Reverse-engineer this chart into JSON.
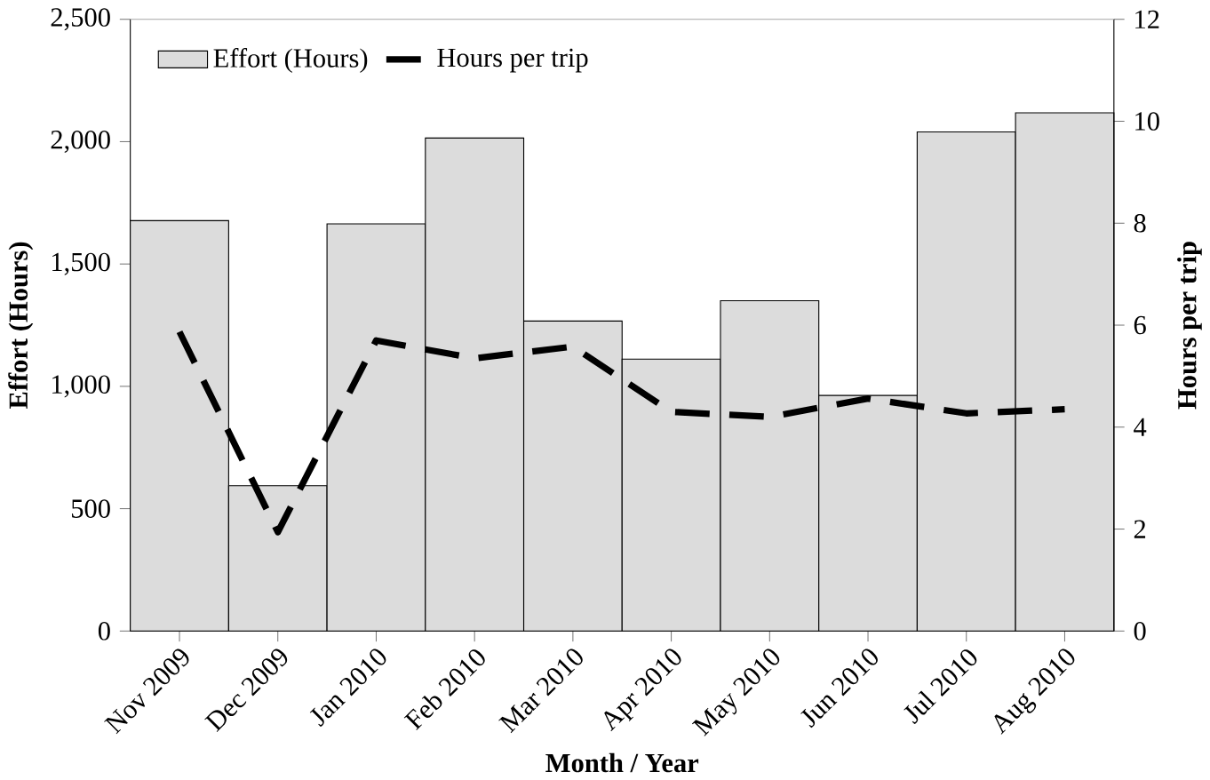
{
  "chart_data": {
    "type": "bar",
    "xlabel": "Month / Year",
    "ylabel": "Effort (Hours)",
    "y2label": "Hours per trip",
    "categories": [
      "Nov 2009",
      "Dec 2009",
      "Jan 2010",
      "Feb 2010",
      "Mar 2010",
      "Apr 2010",
      "May 2010",
      "Jun 2010",
      "Jul 2010",
      "Aug 2010"
    ],
    "series": [
      {
        "name": "Effort (Hours)",
        "color": "#dcdcdc",
        "values": [
          1677,
          594,
          1664,
          2015,
          1267,
          1111,
          1350,
          963,
          2040,
          2118
        ]
      },
      {
        "name": "Hours per trip",
        "type": "line",
        "axis": "y2",
        "color": "#000000",
        "line_style": "dashed",
        "marker": "none",
        "values": [
          5.87,
          1.94,
          5.7,
          5.35,
          5.58,
          4.3,
          4.2,
          4.56,
          4.27,
          4.35
        ]
      }
    ],
    "ylim": [
      0,
      2500
    ],
    "yticks": [
      0,
      500,
      {
        "value": 1000,
        "label": "1,000"
      },
      {
        "value": 1500,
        "label": "1,500"
      },
      {
        "value": 2000,
        "label": "2,000"
      },
      {
        "value": 2500,
        "label": "2,500"
      }
    ],
    "y2lim": [
      0,
      12
    ],
    "y2ticks": [
      0,
      2,
      4,
      6,
      8,
      10,
      12
    ],
    "legend": "top left"
  }
}
